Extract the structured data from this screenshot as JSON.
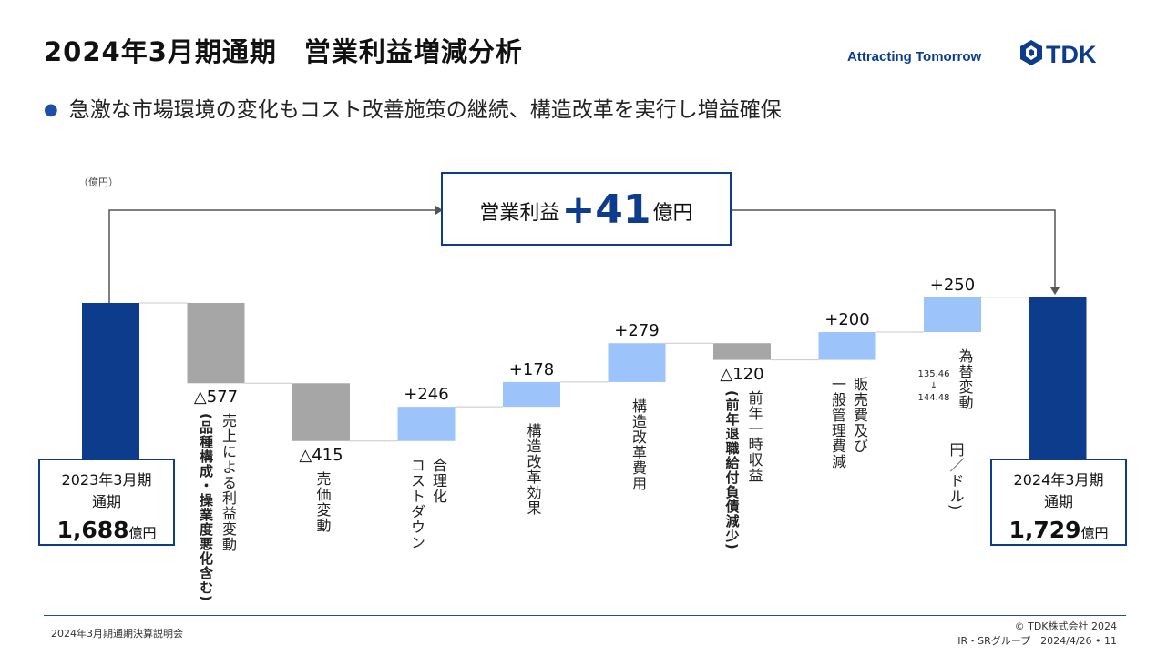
{
  "header": {
    "title": "2024年3月期通期　営業利益増減分析",
    "tagline": "Attracting Tomorrow",
    "logo_text": "TDK"
  },
  "bullet": "急激な市場環境の変化もコスト改善施策の継続、構造改革を実行し増益確保",
  "unit_label": "（億円）",
  "callout": {
    "label": "営業利益",
    "value": "+41",
    "unit": "億円"
  },
  "start_box": {
    "line1": "2023年3月期",
    "line2": "通期",
    "value": "1,688",
    "unit": "億円"
  },
  "end_box": {
    "line1": "2024年3月期",
    "line2": "通期",
    "value": "1,729",
    "unit": "億円"
  },
  "exchange_rate": {
    "from": "135.46",
    "arrow": "↓",
    "to": "144.48"
  },
  "colors": {
    "total": "#0d3c8c",
    "negative": "#a6a6a6",
    "positive": "#9dc3fb",
    "accent": "#1b4fa8"
  },
  "chart_data": {
    "type": "bar",
    "subtype": "waterfall",
    "unit": "億円",
    "start": 1688,
    "end": 1729,
    "steps": [
      {
        "label": "売上による利益変動（品種構成・操業度悪化含む）",
        "text_main": "売上による利益変動",
        "text_sub": "(品種構成・操業度悪化含む)",
        "value_label": "△577",
        "value": -577
      },
      {
        "label": "売価変動",
        "text_main": "売価変動",
        "text_sub": "",
        "value_label": "△415",
        "value": -415
      },
      {
        "label": "合理化 コストダウン",
        "text_main": "合理化",
        "text_sub": "コストダウン",
        "value_label": "+246",
        "value": 246
      },
      {
        "label": "構造改革効果",
        "text_main": "構造改革効果",
        "text_sub": "",
        "value_label": "+178",
        "value": 178
      },
      {
        "label": "構造改革費用",
        "text_main": "構造改革費用",
        "text_sub": "",
        "value_label": "+279",
        "value": 279
      },
      {
        "label": "前年一時収益（前年退職給付負債減少）",
        "text_main": "前年一時収益",
        "text_sub": "(前年退職給付負債減少)",
        "value_label": "△120",
        "value": -120
      },
      {
        "label": "販売費及び一般管理費減",
        "text_main": "販売費及び",
        "text_sub": "一般管理費減",
        "value_label": "+200",
        "value": 200
      },
      {
        "label": "為替変動",
        "text_main": "為替変動",
        "text_sub": "円／ドル)",
        "value_label": "+250",
        "value": 250
      }
    ]
  },
  "footer": {
    "left": "2024年3月期通期決算説明会",
    "copyright": "© TDK株式会社 2024",
    "dept": "IR・SRグループ　2024/4/26 • 11"
  }
}
